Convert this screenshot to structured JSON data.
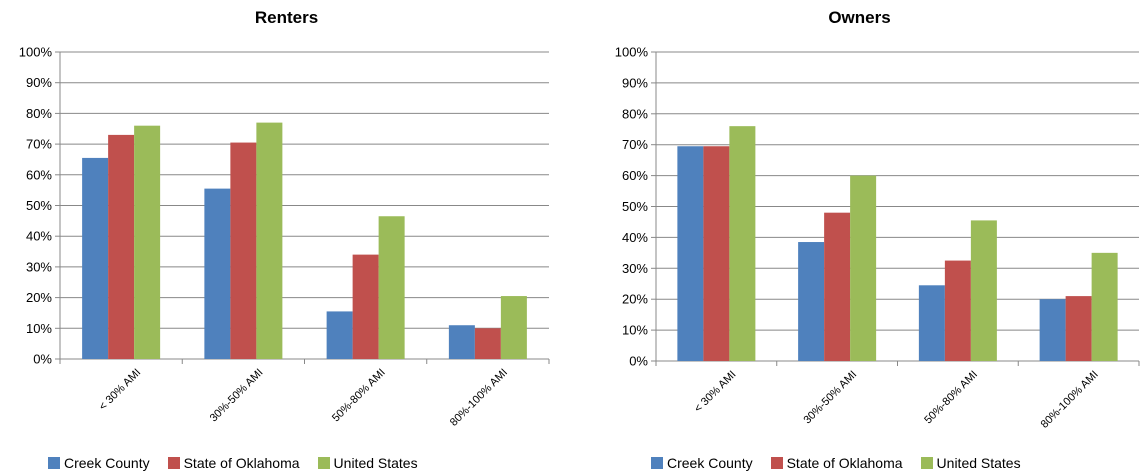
{
  "colors": {
    "creek": "#4F81BD",
    "oklahoma": "#C0504D",
    "us": "#9BBB59",
    "grid": "#888888"
  },
  "chart_data": [
    {
      "type": "bar",
      "title": "Renters",
      "categories": [
        "< 30% AMI",
        "30%-50% AMI",
        "50%-80% AMI",
        "80%-100% AMI"
      ],
      "ytick_labels": [
        "0%",
        "10%",
        "20%",
        "30%",
        "40%",
        "50%",
        "60%",
        "70%",
        "80%",
        "90%",
        "100%"
      ],
      "ylim": [
        0,
        100
      ],
      "grid": true,
      "legend_position": "bottom",
      "series": [
        {
          "name": "Creek County",
          "color": "#4F81BD",
          "values": [
            65.5,
            55.5,
            15.5,
            11
          ]
        },
        {
          "name": "State of Oklahoma",
          "color": "#C0504D",
          "values": [
            73,
            70.5,
            34,
            10
          ]
        },
        {
          "name": "United States",
          "color": "#9BBB59",
          "values": [
            76,
            77,
            46.5,
            20.5
          ]
        }
      ]
    },
    {
      "type": "bar",
      "title": "Owners",
      "categories": [
        "< 30% AMI",
        "30%-50% AMI",
        "50%-80% AMI",
        "80%-100% AMI"
      ],
      "ytick_labels": [
        "0%",
        "10%",
        "20%",
        "30%",
        "40%",
        "50%",
        "60%",
        "70%",
        "80%",
        "90%",
        "100%"
      ],
      "ylim": [
        0,
        100
      ],
      "grid": true,
      "legend_position": "bottom",
      "series": [
        {
          "name": "Creek County",
          "color": "#4F81BD",
          "values": [
            69.5,
            38.5,
            24.5,
            20
          ]
        },
        {
          "name": "State of Oklahoma",
          "color": "#C0504D",
          "values": [
            69.5,
            48,
            32.5,
            21
          ]
        },
        {
          "name": "United States",
          "color": "#9BBB59",
          "values": [
            76,
            60,
            45.5,
            35
          ]
        }
      ]
    }
  ]
}
